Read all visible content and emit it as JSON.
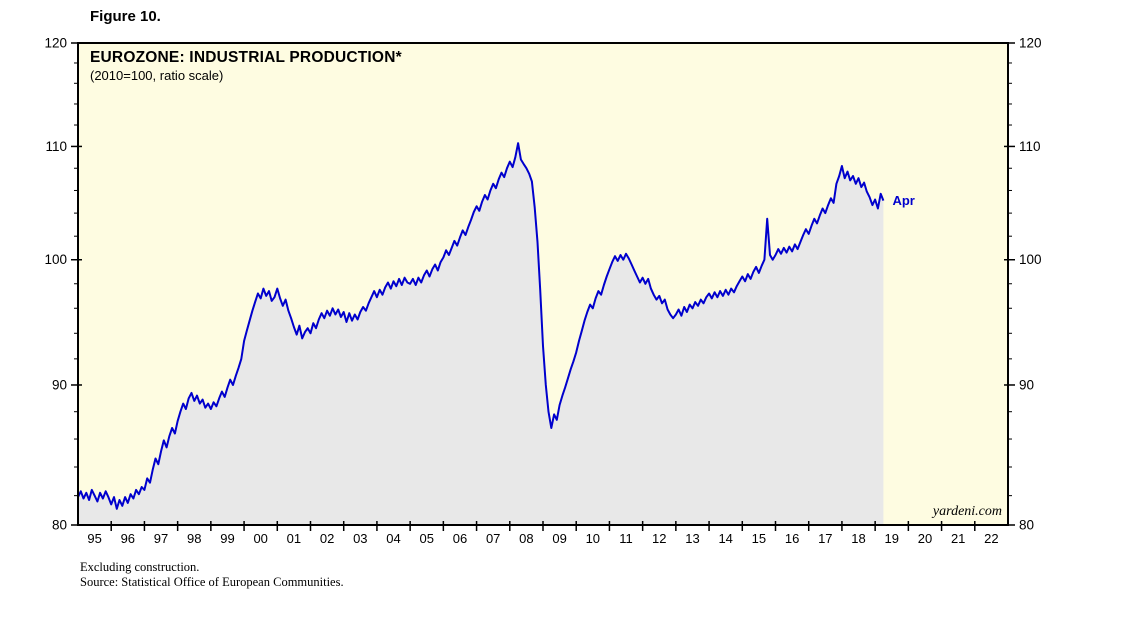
{
  "figure_label": "Figure 10.",
  "chart": {
    "title": "EUROZONE: INDUSTRIAL PRODUCTION*",
    "subtitle": "(2010=100, ratio scale)",
    "last_point_label": "Apr",
    "watermark": "yardeni.com",
    "colors": {
      "line": "#0000CD",
      "area": "#E8E8E8",
      "plot_bg": "#FEFCE1",
      "frame": "#000000",
      "tick": "#000000",
      "label_text": "#000000"
    }
  },
  "footnotes": [
    "Excluding construction.",
    "Source: Statistical Office of European Communities."
  ],
  "chart_data": {
    "type": "line",
    "title": "EUROZONE: INDUSTRIAL PRODUCTION*",
    "subtitle": "(2010=100, ratio scale)",
    "xlabel": "",
    "ylabel": "",
    "y_scale": "log",
    "ylim": [
      80,
      120
    ],
    "y_ticks": [
      80,
      90,
      100,
      110,
      120
    ],
    "y_minor_tick_step": 2,
    "x_domain_years": [
      1995,
      2023
    ],
    "x_axis_year_labels": [
      "95",
      "96",
      "97",
      "98",
      "99",
      "00",
      "01",
      "02",
      "03",
      "04",
      "05",
      "06",
      "07",
      "08",
      "09",
      "10",
      "11",
      "12",
      "13",
      "14",
      "15",
      "16",
      "17",
      "18",
      "19",
      "20",
      "21",
      "22"
    ],
    "frequency": "monthly",
    "x_start": {
      "year": 1995,
      "month": 1
    },
    "x_end": {
      "year": 2019,
      "month": 4
    },
    "legend": "none",
    "grid": "off",
    "annotations": [
      {
        "text": "Apr",
        "position": "end-of-series"
      }
    ],
    "footnote": "Excluding construction.",
    "source_note": "Source: Statistical Office of European Communities.",
    "series": [
      {
        "name": "Eurozone Industrial Production excluding construction (2010=100)",
        "values": [
          81.9,
          82.3,
          81.8,
          82.2,
          81.7,
          82.4,
          82.0,
          81.6,
          82.2,
          81.8,
          82.3,
          81.9,
          81.4,
          81.9,
          81.1,
          81.7,
          81.3,
          81.9,
          81.5,
          82.1,
          81.8,
          82.4,
          82.1,
          82.6,
          82.4,
          83.2,
          82.9,
          83.8,
          84.6,
          84.2,
          85.1,
          85.9,
          85.4,
          86.2,
          86.8,
          86.4,
          87.3,
          88.0,
          88.6,
          88.2,
          89.0,
          89.4,
          88.8,
          89.2,
          88.6,
          88.9,
          88.3,
          88.6,
          88.2,
          88.7,
          88.4,
          89.0,
          89.5,
          89.1,
          89.8,
          90.4,
          90.0,
          90.7,
          91.3,
          92.0,
          93.4,
          94.2,
          95.0,
          95.8,
          96.5,
          97.2,
          96.8,
          97.6,
          97.0,
          97.4,
          96.6,
          96.9,
          97.6,
          96.8,
          96.2,
          96.7,
          95.8,
          95.2,
          94.5,
          93.9,
          94.6,
          93.6,
          94.1,
          94.4,
          94.0,
          94.8,
          94.4,
          95.1,
          95.6,
          95.2,
          95.8,
          95.4,
          96.0,
          95.5,
          95.9,
          95.3,
          95.7,
          94.9,
          95.6,
          95.0,
          95.5,
          95.1,
          95.7,
          96.1,
          95.8,
          96.4,
          96.9,
          97.4,
          96.9,
          97.5,
          97.1,
          97.7,
          98.1,
          97.6,
          98.2,
          97.8,
          98.4,
          97.9,
          98.5,
          98.1,
          98.0,
          98.4,
          97.9,
          98.5,
          98.1,
          98.7,
          99.1,
          98.6,
          99.2,
          99.6,
          99.1,
          99.8,
          100.2,
          100.8,
          100.4,
          101.0,
          101.6,
          101.2,
          101.9,
          102.5,
          102.1,
          102.8,
          103.4,
          104.1,
          104.6,
          104.2,
          105.0,
          105.6,
          105.2,
          106.0,
          106.6,
          106.2,
          107.0,
          107.6,
          107.2,
          108.0,
          108.6,
          108.1,
          109.0,
          110.3,
          108.8,
          108.4,
          108.0,
          107.5,
          106.8,
          104.5,
          101.5,
          97.5,
          93.0,
          90.0,
          88.0,
          86.8,
          87.8,
          87.4,
          88.5,
          89.2,
          89.8,
          90.5,
          91.2,
          91.8,
          92.5,
          93.4,
          94.2,
          95.0,
          95.7,
          96.3,
          96.0,
          96.8,
          97.4,
          97.1,
          97.9,
          98.6,
          99.2,
          99.8,
          100.3,
          99.9,
          100.4,
          100.0,
          100.5,
          100.1,
          99.6,
          99.1,
          98.6,
          98.1,
          98.5,
          98.0,
          98.4,
          97.6,
          97.1,
          96.7,
          97.0,
          96.4,
          96.7,
          95.9,
          95.5,
          95.2,
          95.5,
          95.9,
          95.4,
          96.1,
          95.7,
          96.3,
          96.0,
          96.5,
          96.2,
          96.7,
          96.4,
          96.9,
          97.2,
          96.8,
          97.3,
          96.9,
          97.4,
          97.0,
          97.5,
          97.1,
          97.6,
          97.3,
          97.8,
          98.2,
          98.6,
          98.2,
          98.8,
          98.4,
          99.0,
          99.4,
          98.9,
          99.5,
          100.0,
          103.5,
          100.4,
          100.0,
          100.4,
          100.9,
          100.5,
          101.0,
          100.6,
          101.1,
          100.7,
          101.3,
          100.9,
          101.5,
          102.1,
          102.6,
          102.2,
          102.9,
          103.5,
          103.1,
          103.8,
          104.4,
          104.0,
          104.7,
          105.3,
          104.9,
          106.6,
          107.3,
          108.2,
          107.1,
          107.7,
          106.9,
          107.3,
          106.6,
          107.1,
          106.3,
          106.7,
          105.9,
          105.4,
          104.7,
          105.2,
          104.4,
          105.7,
          105.1
        ]
      }
    ]
  }
}
